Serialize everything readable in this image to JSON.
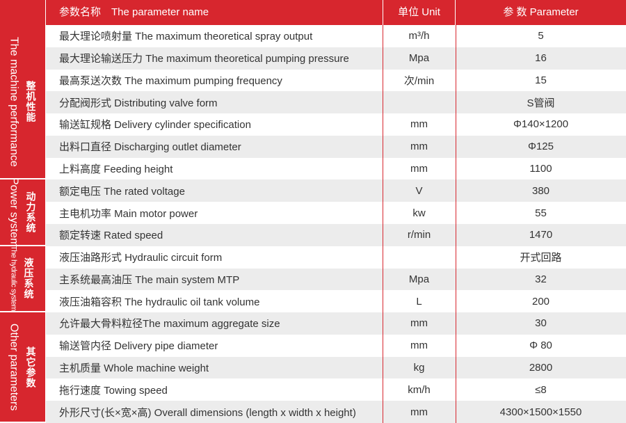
{
  "header": {
    "name": "参数名称　The parameter name",
    "unit": "单位 Unit",
    "value": "参 数 Parameter"
  },
  "groups": [
    {
      "label_en": "The machine performance",
      "label_zh": "整机性能",
      "rows": [
        {
          "name": "最大理论喷射量 The maximum theoretical spray output",
          "unit": "m³/h",
          "value": 5
        },
        {
          "name": "最大理论输送压力 The maximum theoretical pumping pressure",
          "unit": "Mpa",
          "value": 16
        },
        {
          "name": "最高泵送次数 The maximum pumping frequency",
          "unit": "次/min",
          "value": 15
        },
        {
          "name": "分配阀形式 Distributing valve form",
          "value": "S管阀"
        },
        {
          "name": "输送缸规格 Delivery cylinder specification",
          "unit": "mm",
          "value": "Φ140×1200"
        },
        {
          "name": "出料口直径 Discharging outlet diameter",
          "unit": "mm",
          "value": "Φ125"
        },
        {
          "name": "上料高度 Feeding height",
          "unit": "mm",
          "value": 1100
        }
      ]
    },
    {
      "label_en": "Power system",
      "label_zh": "动力系统",
      "rows": [
        {
          "name": "额定电压 The rated voltage",
          "unit": "V",
          "value": 380
        },
        {
          "name": "主电机功率 Main motor power",
          "unit": "kw",
          "value": 55
        },
        {
          "name": "额定转速 Rated speed",
          "unit": "r/min",
          "value": 1470
        }
      ]
    },
    {
      "label_en": "The hydraulic system",
      "label_zh": "液压系统",
      "rows": [
        {
          "name": "液压油路形式 Hydraulic circuit form",
          "value": "开式回路"
        },
        {
          "name": "主系统最高油压 The main system MTP",
          "unit": "Mpa",
          "value": 32
        },
        {
          "name": "液压油箱容积 The hydraulic oil tank volume",
          "unit": "L",
          "value": 200
        }
      ]
    },
    {
      "label_en": "Other parameters",
      "label_zh": "其它参数",
      "rows": [
        {
          "name": "允许最大骨料粒径The maximum aggregate size",
          "unit": "mm",
          "value": 30
        },
        {
          "name": "输送管内径 Delivery pipe diameter",
          "unit": "mm",
          "value": "Φ 80"
        },
        {
          "name": "主机质量  Whole machine weight",
          "unit": "kg",
          "value": 2800
        },
        {
          "name": "拖行速度 Towing  speed",
          "unit": "km/h",
          "value": "≤8"
        },
        {
          "name": "外形尺寸(长×宽×高) Overall dimensions (length x width x height)",
          "unit": "mm",
          "value": "4300×1500×1550"
        }
      ]
    }
  ]
}
